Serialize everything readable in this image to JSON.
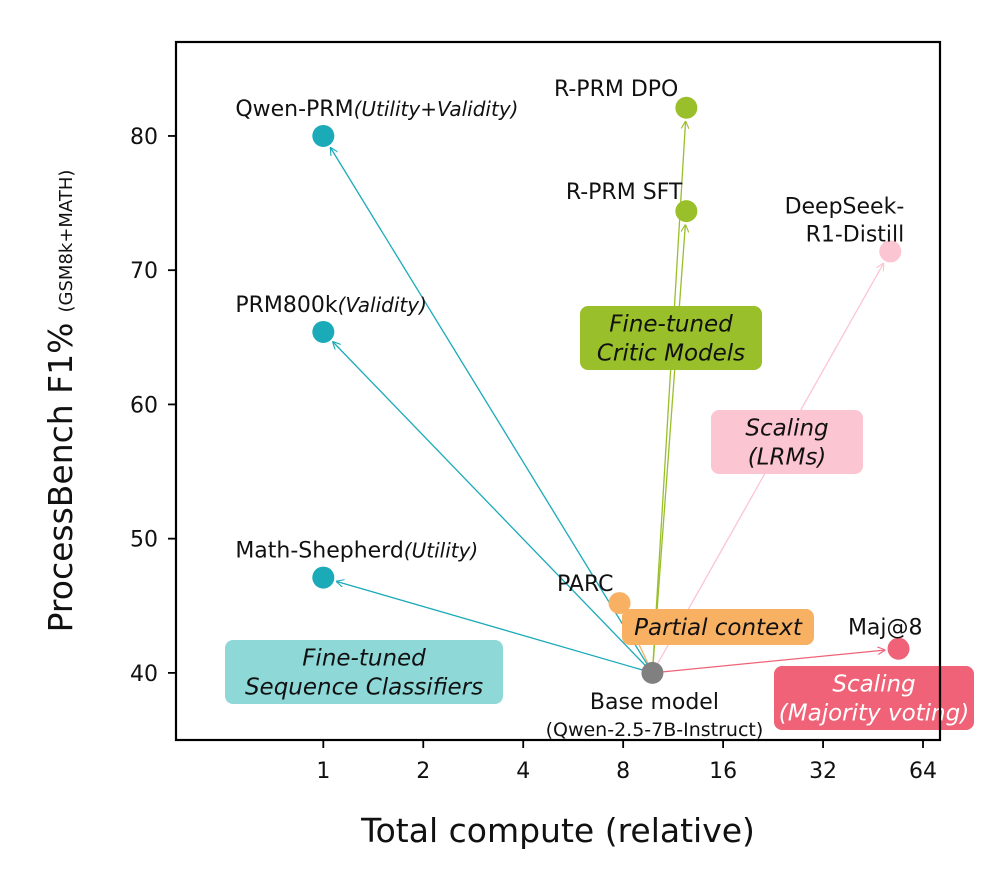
{
  "chart_data": {
    "type": "scatter",
    "xscale": "log2",
    "xlabel": "Total compute (relative)",
    "ylabel": "ProcessBench F1%",
    "ylabel_sub": "(GSM8k+MATH)",
    "xlim": [
      0.36,
      72
    ],
    "ylim": [
      35,
      87
    ],
    "xticks": [
      1,
      2,
      4,
      8,
      16,
      32,
      64
    ],
    "yticks": [
      40,
      50,
      60,
      70,
      80
    ],
    "base": {
      "name": "Base model",
      "sub": "(Qwen-2.5-7B-Instruct)",
      "x": 9.8,
      "y": 40.0,
      "color": "#808080"
    },
    "points": [
      {
        "name": "Qwen-PRM",
        "sub": "(Utility+Validity)",
        "x": 1.0,
        "y": 80.0,
        "color": "#1aaab8"
      },
      {
        "name": "PRM800k",
        "sub": "(Validity)",
        "x": 1.0,
        "y": 65.4,
        "color": "#1aaab8"
      },
      {
        "name": "Math-Shepherd",
        "sub": "(Utility)",
        "x": 1.0,
        "y": 47.1,
        "color": "#1aaab8"
      },
      {
        "name": "R-PRM DPO",
        "sub": "",
        "x": 12.4,
        "y": 82.1,
        "color": "#99bf2a"
      },
      {
        "name": "R-PRM SFT",
        "sub": "",
        "x": 12.4,
        "y": 74.4,
        "color": "#99bf2a"
      },
      {
        "name": "DeepSeek-",
        "sub": "R1-Distill",
        "x": 51,
        "y": 71.4,
        "color": "#fcc5d2"
      },
      {
        "name": "PARC",
        "sub": "",
        "x": 7.8,
        "y": 45.2,
        "color": "#f8b062"
      },
      {
        "name": "Maj@8",
        "sub": "",
        "x": 54,
        "y": 41.8,
        "color": "#ef6277"
      }
    ],
    "annotations": [
      {
        "id": "seq",
        "lines": [
          "Fine-tuned",
          "Sequence Classifiers"
        ],
        "color": "#8ed8d8",
        "text_color": "#111111"
      },
      {
        "id": "critic",
        "lines": [
          "Fine-tuned",
          "Critic Models"
        ],
        "color": "#99bf2a",
        "text_color": "#111111"
      },
      {
        "id": "lrm",
        "lines": [
          "Scaling",
          "(LRMs)"
        ],
        "color": "#fcc5d2",
        "text_color": "#111111"
      },
      {
        "id": "partial",
        "lines": [
          "Partial context"
        ],
        "color": "#f8b062",
        "text_color": "#111111"
      },
      {
        "id": "maj",
        "lines": [
          "Scaling",
          "(Majority voting)"
        ],
        "color": "#ef6277",
        "text_color": "#ffffff"
      }
    ]
  }
}
